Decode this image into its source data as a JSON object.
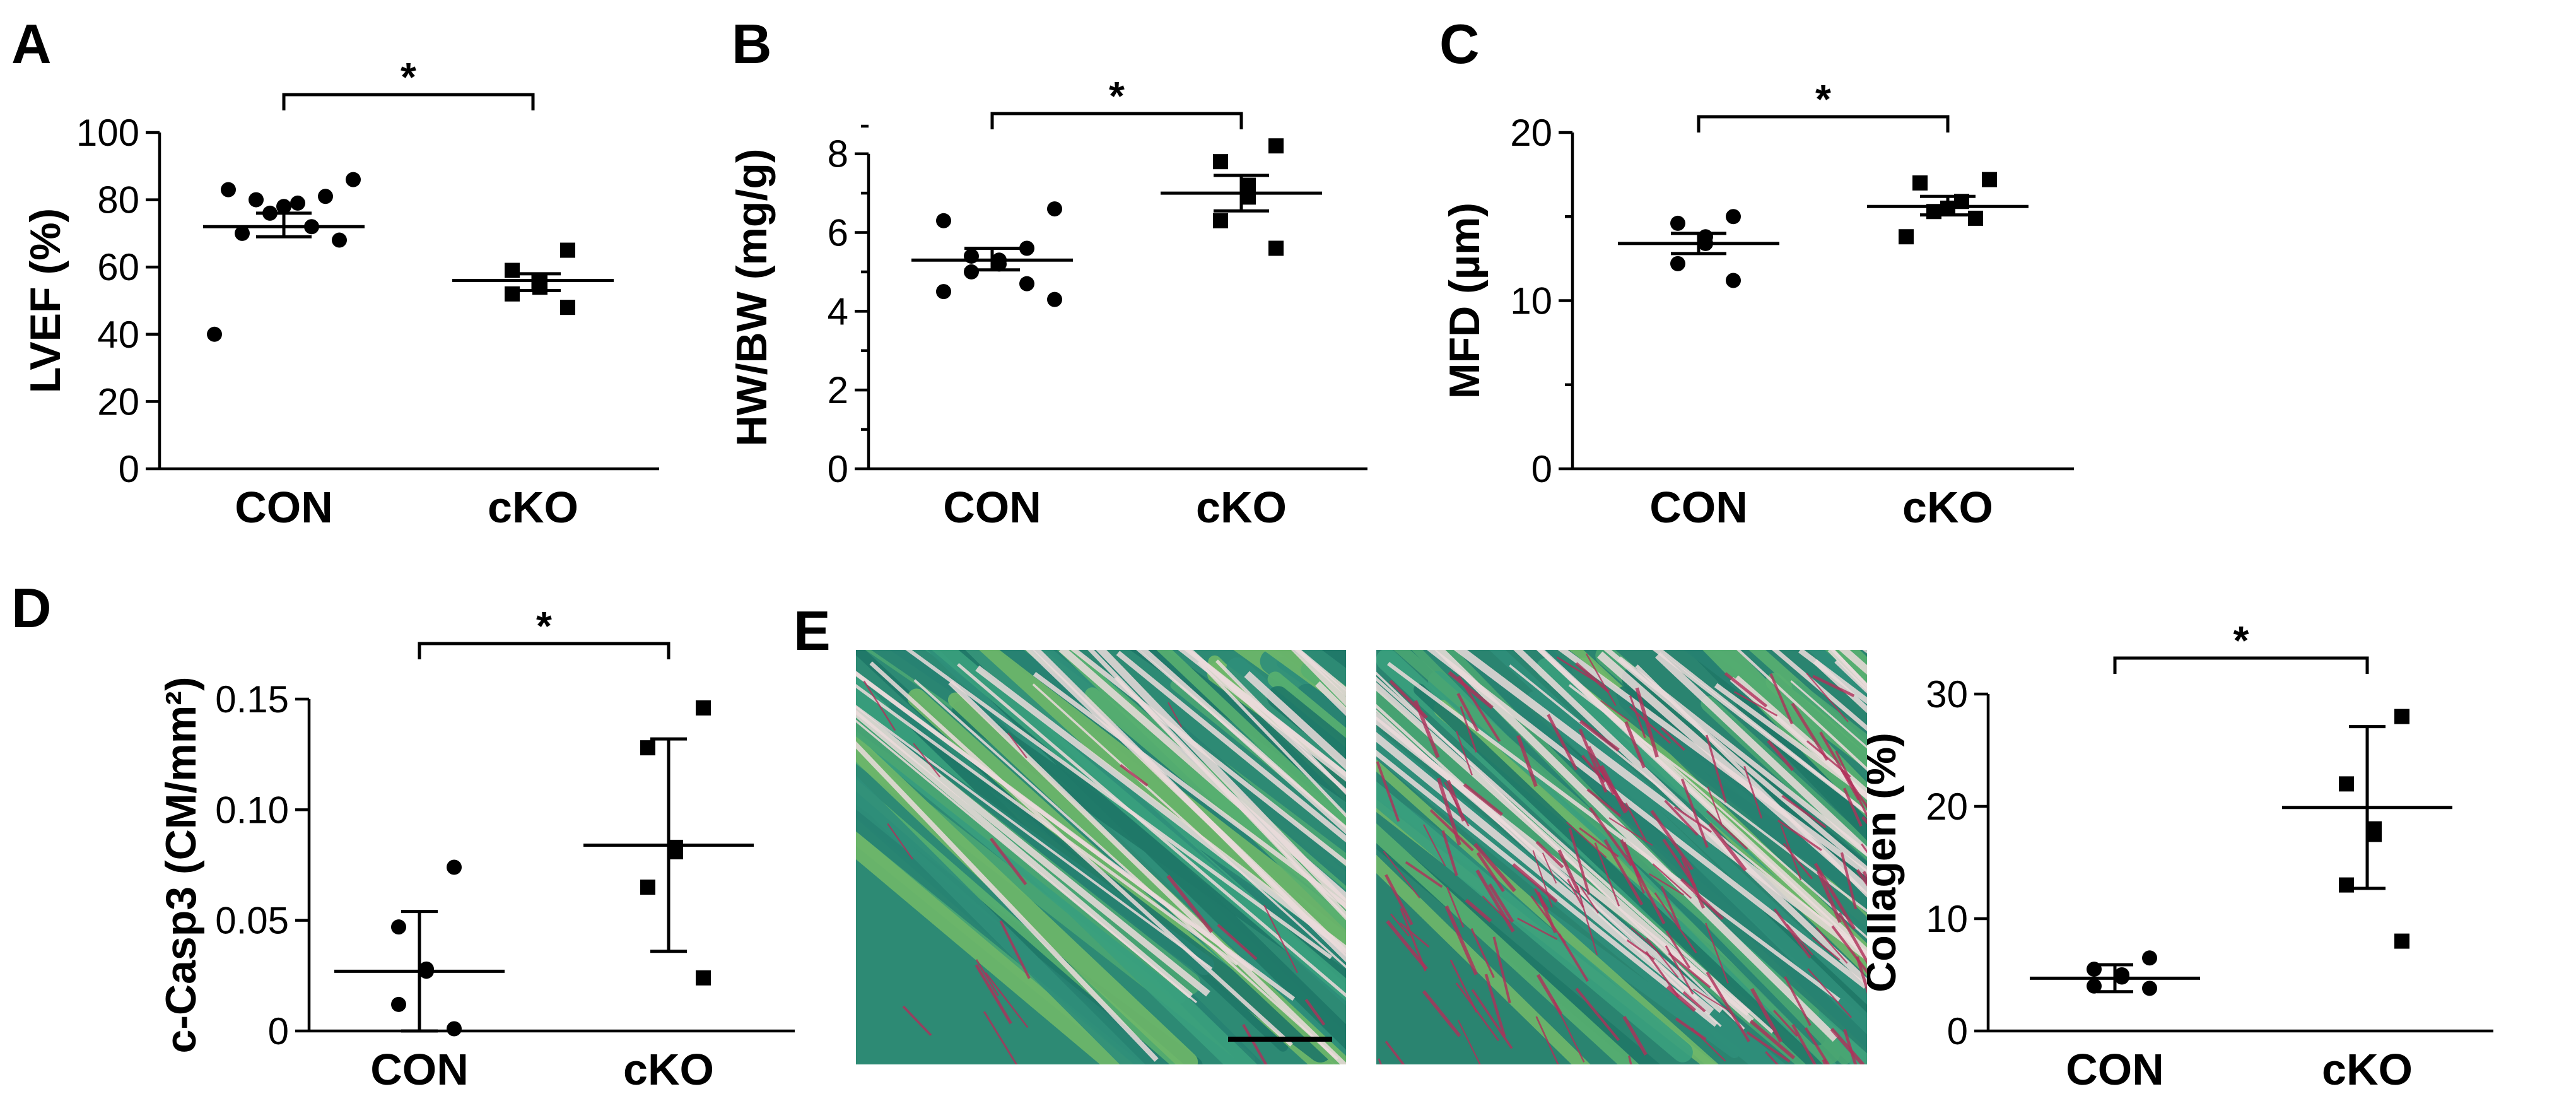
{
  "chart_data": [
    {
      "panel": "A",
      "type": "scatter",
      "ylabel": "LVEF (%)",
      "xlabel": "",
      "categories": [
        "CON",
        "cKO"
      ],
      "ylim": [
        0,
        100
      ],
      "yticks": [
        0,
        20,
        40,
        60,
        80,
        100
      ],
      "series": [
        {
          "category": "CON",
          "marker": "circle",
          "values": [
            86,
            83,
            81,
            80,
            79,
            78,
            76,
            72,
            70,
            68,
            40
          ],
          "center": 72,
          "error": [
            69,
            76
          ]
        },
        {
          "category": "cKO",
          "marker": "square",
          "values": [
            65,
            59,
            56,
            54,
            52,
            48
          ],
          "center": 56,
          "error": [
            53,
            58
          ]
        }
      ],
      "significance": "*"
    },
    {
      "panel": "B",
      "type": "scatter",
      "ylabel": "HW/BW (mg/g)",
      "xlabel": "",
      "categories": [
        "CON",
        "cKO"
      ],
      "ylim": [
        0,
        8.7
      ],
      "yticks": [
        0,
        2,
        4,
        6,
        8
      ],
      "series": [
        {
          "category": "CON",
          "marker": "circle",
          "values": [
            6.6,
            6.3,
            5.6,
            5.4,
            5.3,
            5.2,
            5.0,
            4.7,
            4.5,
            4.3
          ],
          "center": 5.3,
          "error": [
            5.05,
            5.6
          ]
        },
        {
          "category": "cKO",
          "marker": "square",
          "values": [
            8.2,
            7.8,
            7.2,
            6.9,
            6.3,
            5.6
          ],
          "center": 7.0,
          "error": [
            6.55,
            7.45
          ]
        }
      ],
      "significance": "*"
    },
    {
      "panel": "C",
      "type": "scatter",
      "ylabel": "MFD (µm)",
      "xlabel": "",
      "categories": [
        "CON",
        "cKO"
      ],
      "ylim": [
        0,
        20
      ],
      "yticks": [
        0,
        10,
        20
      ],
      "series": [
        {
          "category": "CON",
          "marker": "circle",
          "values": [
            15.0,
            14.6,
            13.8,
            13.4,
            12.2,
            11.2
          ],
          "center": 13.4,
          "error": [
            12.8,
            14.0
          ]
        },
        {
          "category": "cKO",
          "marker": "square",
          "values": [
            17.2,
            17.0,
            15.9,
            15.5,
            15.3,
            14.9,
            13.8
          ],
          "center": 15.6,
          "error": [
            15.1,
            16.2
          ]
        }
      ],
      "significance": "*"
    },
    {
      "panel": "D",
      "type": "scatter",
      "ylabel": "c-Casp3 (CM/mm²)",
      "xlabel": "",
      "categories": [
        "CON",
        "cKO"
      ],
      "ylim": [
        0,
        0.15
      ],
      "yticks": [
        "0",
        "0.05",
        "0.10",
        "0.15"
      ],
      "series": [
        {
          "category": "CON",
          "marker": "circle",
          "values": [
            0.074,
            0.047,
            0.028,
            0.027,
            0.012,
            0.001
          ],
          "center": 0.027,
          "error": [
            0.0,
            0.054
          ]
        },
        {
          "category": "cKO",
          "marker": "square",
          "values": [
            0.146,
            0.128,
            0.083,
            0.081,
            0.065,
            0.024
          ],
          "center": 0.084,
          "error": [
            0.036,
            0.132
          ]
        }
      ],
      "significance": "*"
    },
    {
      "panel": "E",
      "type": "scatter",
      "ylabel": "Collagen (%)",
      "xlabel": "",
      "categories": [
        "CON",
        "cKO"
      ],
      "ylim": [
        0,
        30
      ],
      "yticks": [
        0,
        10,
        20,
        30
      ],
      "series": [
        {
          "category": "CON",
          "marker": "circle",
          "values": [
            6.5,
            5.5,
            5.0,
            4.8,
            4.0,
            3.8
          ],
          "center": 4.7,
          "error": [
            3.5,
            5.9
          ]
        },
        {
          "category": "cKO",
          "marker": "square",
          "values": [
            28.0,
            22.0,
            18.0,
            17.5,
            13.0,
            8.0
          ],
          "center": 19.9,
          "error": [
            12.7,
            27.1
          ]
        }
      ],
      "significance": "*"
    }
  ],
  "micrographs": {
    "description_icon": "histology-image",
    "stain_colors": {
      "muscle": "#2f8f7a",
      "fiber_light": "#6fb86a",
      "collagen": "#b0305a",
      "background": "#ecdcdc"
    },
    "images": [
      "CON micrograph",
      "cKO micrograph"
    ],
    "scale_bar": true
  },
  "panel_letters": [
    "A",
    "B",
    "C",
    "D",
    "E"
  ]
}
